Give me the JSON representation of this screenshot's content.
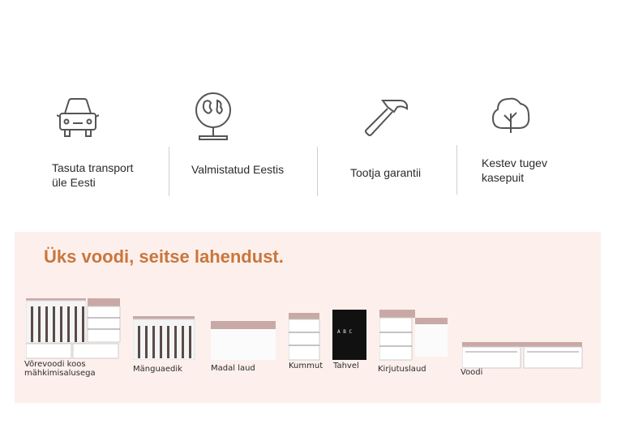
{
  "features": [
    {
      "icon": "car-icon",
      "label_line1": "Tasuta transport",
      "label_line2": "üle Eesti"
    },
    {
      "icon": "globe-icon",
      "label_line1": "Valmistatud Eestis",
      "label_line2": ""
    },
    {
      "icon": "hammer-icon",
      "label_line1": "Tootja garantii",
      "label_line2": ""
    },
    {
      "icon": "tree-icon",
      "label_line1": "Kestev tugev",
      "label_line2": "kasepuit"
    }
  ],
  "promo": {
    "title": "Üks voodi, seitse lahendust.",
    "accent_color": "#c9763d",
    "background_color": "#fdf0ec"
  },
  "products": [
    {
      "line1": "Võrevoodi koos",
      "line2": "mähkimisalusega"
    },
    {
      "line1": "Mänguaedik",
      "line2": ""
    },
    {
      "line1": "Madal laud",
      "line2": ""
    },
    {
      "line1": "Kummut",
      "line2": ""
    },
    {
      "line1": "Tahvel",
      "line2": ""
    },
    {
      "line1": "Kirjutuslaud",
      "line2": ""
    },
    {
      "line1": "Voodi",
      "line2": ""
    }
  ],
  "tablet_text": "A  B  C"
}
